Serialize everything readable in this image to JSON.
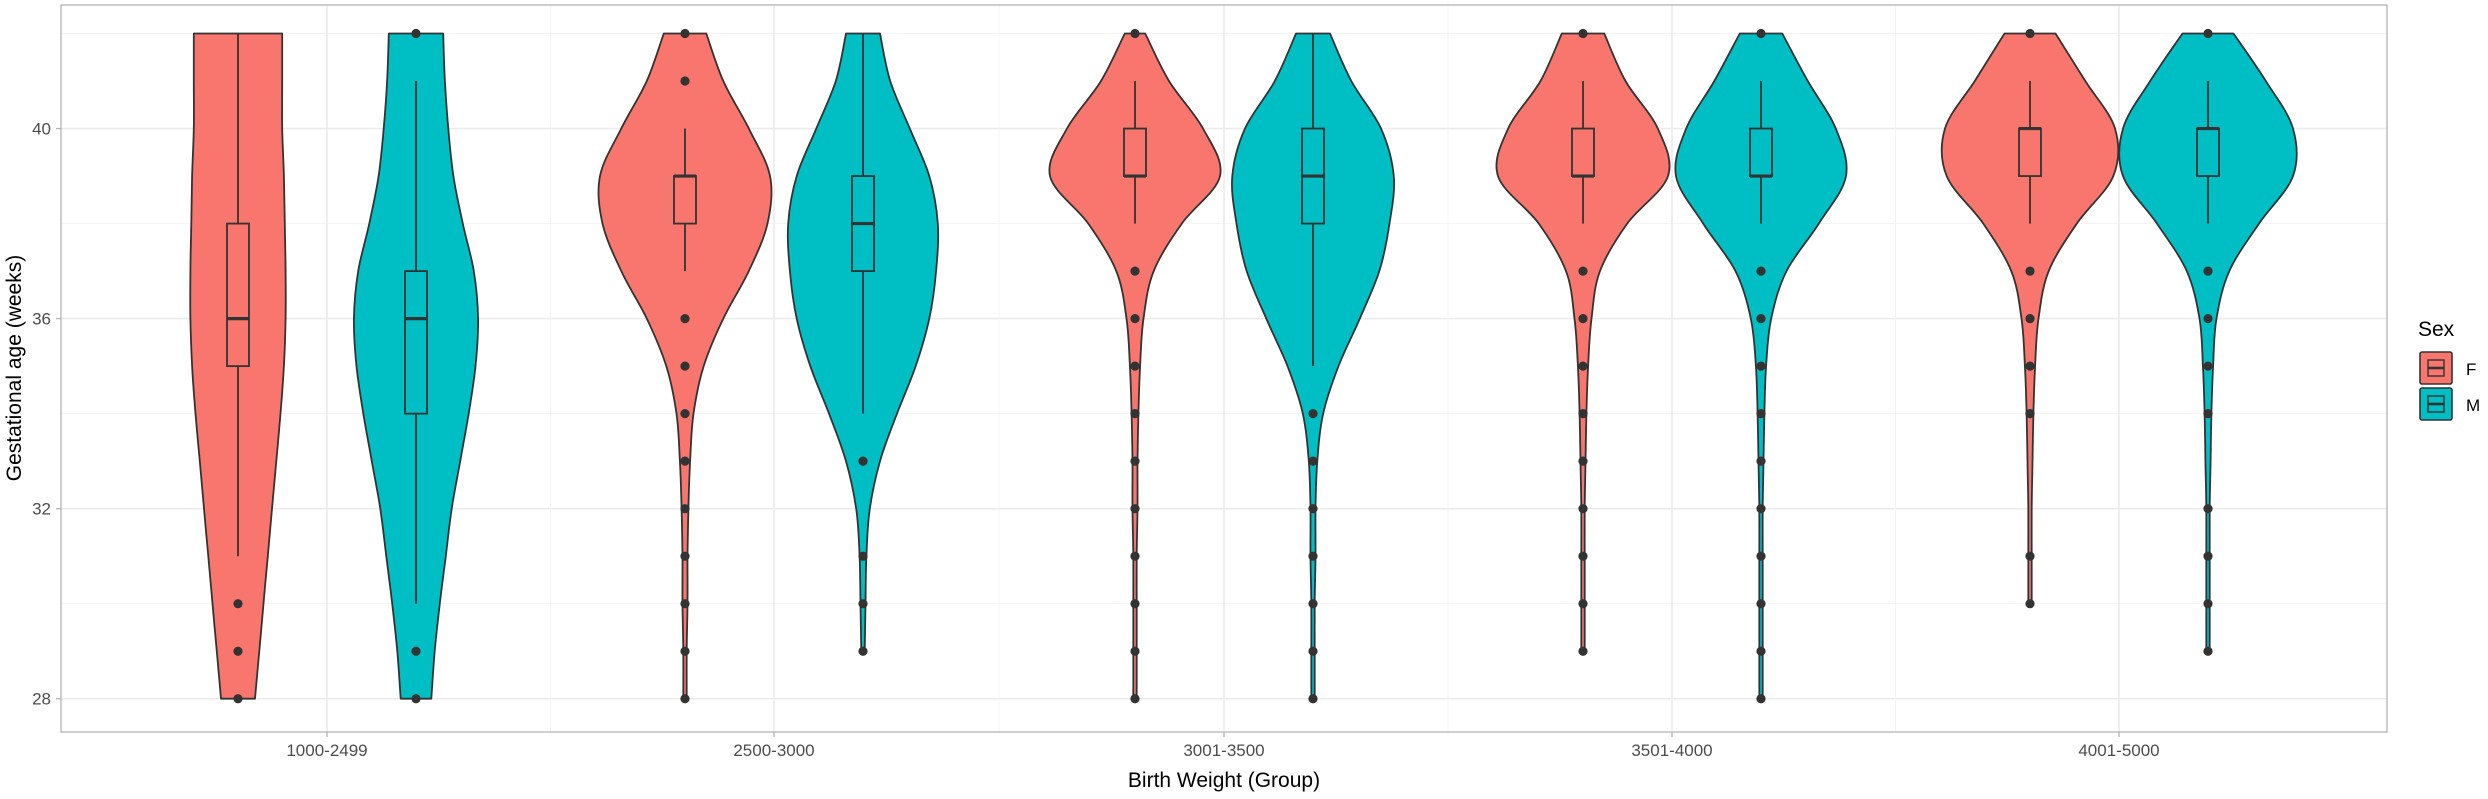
{
  "chart_data": {
    "type": "violin",
    "title": "",
    "xlabel": "Birth Weight (Group)",
    "ylabel": "Gestational age (weeks)",
    "categories": [
      "1000-2499",
      "2500-3000",
      "3001-3500",
      "3501-4000",
      "4001-5000"
    ],
    "ylim": [
      27.3,
      42.6
    ],
    "yticks": [
      28,
      32,
      36,
      40
    ],
    "grid": true,
    "legend": {
      "title": "Sex",
      "position": "right",
      "entries": [
        {
          "label": "F",
          "color": "#F8766D"
        },
        {
          "label": "M",
          "color": "#00BFC4"
        }
      ]
    },
    "groups": [
      {
        "category": "1000-2499",
        "sex": "F",
        "box": {
          "lower_whisker": 31,
          "q1": 35,
          "median": 36,
          "q3": 38,
          "upper_whisker": 42
        },
        "outliers": [
          30,
          29,
          28
        ],
        "density": [
          [
            28,
            0.2
          ],
          [
            29,
            0.25
          ],
          [
            30,
            0.3
          ],
          [
            31,
            0.35
          ],
          [
            32,
            0.4
          ],
          [
            33,
            0.45
          ],
          [
            34,
            0.5
          ],
          [
            35,
            0.54
          ],
          [
            36,
            0.56
          ],
          [
            37,
            0.56
          ],
          [
            38,
            0.55
          ],
          [
            39,
            0.54
          ],
          [
            40,
            0.52
          ],
          [
            41,
            0.52
          ],
          [
            42,
            0.52
          ]
        ]
      },
      {
        "category": "1000-2499",
        "sex": "M",
        "box": {
          "lower_whisker": 30,
          "q1": 34,
          "median": 36,
          "q3": 37,
          "upper_whisker": 41
        },
        "outliers": [
          29,
          28,
          42
        ],
        "density": [
          [
            28,
            0.18
          ],
          [
            29,
            0.22
          ],
          [
            30,
            0.28
          ],
          [
            31,
            0.35
          ],
          [
            32,
            0.42
          ],
          [
            33,
            0.52
          ],
          [
            34,
            0.62
          ],
          [
            35,
            0.7
          ],
          [
            36,
            0.73
          ],
          [
            37,
            0.68
          ],
          [
            38,
            0.55
          ],
          [
            39,
            0.44
          ],
          [
            40,
            0.38
          ],
          [
            41,
            0.34
          ],
          [
            42,
            0.32
          ]
        ]
      },
      {
        "category": "2500-3000",
        "sex": "F",
        "box": {
          "lower_whisker": 37,
          "q1": 38,
          "median": 39,
          "q3": 39,
          "upper_whisker": 40
        },
        "outliers": [
          42,
          41,
          36,
          35,
          34,
          33,
          32,
          31,
          30,
          29,
          28
        ],
        "density": [
          [
            28,
            0.02
          ],
          [
            29,
            0.02
          ],
          [
            30,
            0.03
          ],
          [
            31,
            0.03
          ],
          [
            32,
            0.04
          ],
          [
            33,
            0.06
          ],
          [
            34,
            0.1
          ],
          [
            35,
            0.22
          ],
          [
            36,
            0.45
          ],
          [
            37,
            0.75
          ],
          [
            38,
            0.97
          ],
          [
            39,
            1.0
          ],
          [
            40,
            0.75
          ],
          [
            41,
            0.45
          ],
          [
            42,
            0.25
          ]
        ]
      },
      {
        "category": "2500-3000",
        "sex": "M",
        "box": {
          "lower_whisker": 34,
          "q1": 37,
          "median": 38,
          "q3": 39,
          "upper_whisker": 42
        },
        "outliers": [
          33,
          31,
          30,
          29
        ],
        "density": [
          [
            29,
            0.02
          ],
          [
            30,
            0.03
          ],
          [
            31,
            0.04
          ],
          [
            32,
            0.08
          ],
          [
            33,
            0.2
          ],
          [
            34,
            0.4
          ],
          [
            35,
            0.62
          ],
          [
            36,
            0.78
          ],
          [
            37,
            0.86
          ],
          [
            38,
            0.88
          ],
          [
            39,
            0.78
          ],
          [
            40,
            0.55
          ],
          [
            41,
            0.32
          ],
          [
            42,
            0.2
          ]
        ]
      },
      {
        "category": "3001-3500",
        "sex": "F",
        "box": {
          "lower_whisker": 38,
          "q1": 39,
          "median": 39,
          "q3": 40,
          "upper_whisker": 41
        },
        "outliers": [
          42,
          37,
          36,
          35,
          34,
          33,
          32,
          31,
          30,
          29,
          28
        ],
        "density": [
          [
            28,
            0.02
          ],
          [
            29,
            0.02
          ],
          [
            30,
            0.02
          ],
          [
            31,
            0.02
          ],
          [
            32,
            0.03
          ],
          [
            33,
            0.03
          ],
          [
            34,
            0.04
          ],
          [
            35,
            0.06
          ],
          [
            36,
            0.1
          ],
          [
            37,
            0.22
          ],
          [
            38,
            0.55
          ],
          [
            39,
            1.0
          ],
          [
            40,
            0.8
          ],
          [
            41,
            0.4
          ],
          [
            42,
            0.12
          ]
        ]
      },
      {
        "category": "3001-3500",
        "sex": "M",
        "box": {
          "lower_whisker": 35,
          "q1": 38,
          "median": 39,
          "q3": 40,
          "upper_whisker": 42
        },
        "outliers": [
          34,
          33,
          32,
          31,
          30,
          29,
          28
        ],
        "density": [
          [
            28,
            0.02
          ],
          [
            29,
            0.02
          ],
          [
            30,
            0.02
          ],
          [
            31,
            0.03
          ],
          [
            32,
            0.03
          ],
          [
            33,
            0.05
          ],
          [
            34,
            0.12
          ],
          [
            35,
            0.3
          ],
          [
            36,
            0.55
          ],
          [
            37,
            0.78
          ],
          [
            38,
            0.9
          ],
          [
            39,
            0.95
          ],
          [
            40,
            0.8
          ],
          [
            41,
            0.45
          ],
          [
            42,
            0.2
          ]
        ]
      },
      {
        "category": "3501-4000",
        "sex": "F",
        "box": {
          "lower_whisker": 38,
          "q1": 39,
          "median": 39,
          "q3": 40,
          "upper_whisker": 41
        },
        "outliers": [
          42,
          37,
          36,
          35,
          34,
          33,
          32,
          31,
          30,
          29
        ],
        "density": [
          [
            29,
            0.02
          ],
          [
            30,
            0.02
          ],
          [
            31,
            0.02
          ],
          [
            32,
            0.02
          ],
          [
            33,
            0.03
          ],
          [
            34,
            0.04
          ],
          [
            35,
            0.06
          ],
          [
            36,
            0.1
          ],
          [
            37,
            0.2
          ],
          [
            38,
            0.52
          ],
          [
            39,
            1.0
          ],
          [
            40,
            0.88
          ],
          [
            41,
            0.5
          ],
          [
            42,
            0.25
          ]
        ]
      },
      {
        "category": "3501-4000",
        "sex": "M",
        "box": {
          "lower_whisker": 38,
          "q1": 39,
          "median": 39,
          "q3": 40,
          "upper_whisker": 41
        },
        "outliers": [
          42,
          37,
          36,
          35,
          34,
          33,
          32,
          31,
          30,
          29,
          28
        ],
        "density": [
          [
            28,
            0.02
          ],
          [
            29,
            0.02
          ],
          [
            30,
            0.02
          ],
          [
            31,
            0.02
          ],
          [
            32,
            0.02
          ],
          [
            33,
            0.03
          ],
          [
            34,
            0.04
          ],
          [
            35,
            0.06
          ],
          [
            36,
            0.12
          ],
          [
            37,
            0.3
          ],
          [
            38,
            0.68
          ],
          [
            39,
            1.0
          ],
          [
            40,
            0.88
          ],
          [
            41,
            0.55
          ],
          [
            42,
            0.25
          ]
        ]
      },
      {
        "category": "4001-5000",
        "sex": "F",
        "box": {
          "lower_whisker": 38,
          "q1": 39,
          "median": 40,
          "q3": 40,
          "upper_whisker": 41
        },
        "outliers": [
          42,
          37,
          36,
          35,
          34,
          31,
          30
        ],
        "density": [
          [
            30,
            0.02
          ],
          [
            31,
            0.02
          ],
          [
            32,
            0.02
          ],
          [
            33,
            0.03
          ],
          [
            34,
            0.04
          ],
          [
            35,
            0.06
          ],
          [
            36,
            0.1
          ],
          [
            37,
            0.22
          ],
          [
            38,
            0.55
          ],
          [
            39,
            0.98
          ],
          [
            40,
            1.0
          ],
          [
            41,
            0.65
          ],
          [
            42,
            0.3
          ]
        ]
      },
      {
        "category": "4001-5000",
        "sex": "M",
        "box": {
          "lower_whisker": 38,
          "q1": 39,
          "median": 40,
          "q3": 40,
          "upper_whisker": 41
        },
        "outliers": [
          42,
          37,
          36,
          35,
          34,
          32,
          31,
          30,
          29
        ],
        "density": [
          [
            29,
            0.02
          ],
          [
            30,
            0.02
          ],
          [
            31,
            0.02
          ],
          [
            32,
            0.02
          ],
          [
            33,
            0.03
          ],
          [
            34,
            0.04
          ],
          [
            35,
            0.06
          ],
          [
            36,
            0.1
          ],
          [
            37,
            0.25
          ],
          [
            38,
            0.6
          ],
          [
            39,
            1.0
          ],
          [
            40,
            1.0
          ],
          [
            41,
            0.68
          ],
          [
            42,
            0.3
          ]
        ]
      }
    ]
  }
}
